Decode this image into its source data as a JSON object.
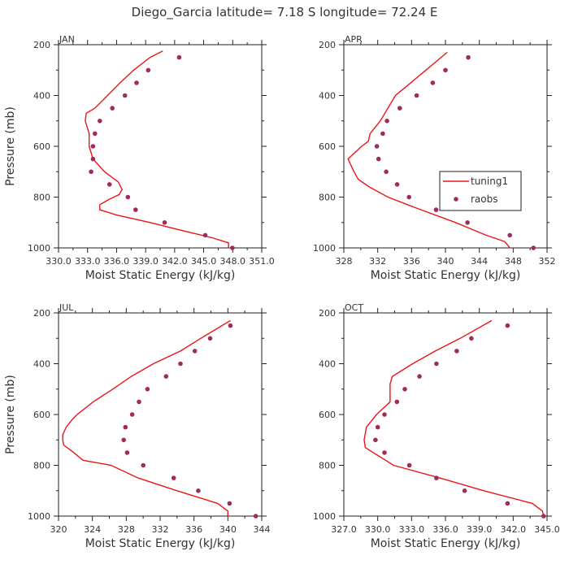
{
  "title": "Diego_Garcia  latitude= 7.18 S longitude= 72.24 E",
  "legend": {
    "model": "tuning1",
    "obs": "raobs",
    "line_color": "#e8161b",
    "dot_color": "#a02c5a"
  },
  "y_axis": {
    "label": "Pressure (mb)",
    "ticks": [
      200,
      400,
      600,
      800,
      1000
    ],
    "range": [
      200,
      1000
    ]
  },
  "x_label": "Moist Static Energy (kJ/kg)",
  "chart_data": [
    {
      "type": "line",
      "panel": "JAN",
      "xlim": [
        330.0351,
        351.0351
      ],
      "xticks": [
        330.0351,
        333.0351,
        336.0351,
        339.0351,
        342.0351,
        345.0351,
        348.0351,
        351.0351
      ],
      "xtick_labels": [
        "330.0",
        "333.0",
        "336.0",
        "339.0",
        "342.0",
        "345.0",
        "348.0",
        "351.0"
      ],
      "model_pressure": [
        225,
        250,
        300,
        350,
        400,
        450,
        470,
        500,
        550,
        600,
        650,
        700,
        740,
        770,
        790,
        810,
        830,
        850,
        870,
        900,
        930,
        960,
        980,
        1000
      ],
      "model_mse": [
        340.8,
        339.5,
        337.8,
        336.4,
        335.1,
        333.8,
        332.9,
        332.8,
        333.2,
        333.2,
        333.6,
        334.8,
        336.2,
        336.6,
        336.3,
        335.2,
        334.3,
        334.3,
        336.0,
        339.5,
        342.6,
        345.9,
        347.6,
        347.6
      ],
      "obs_pressure": [
        250,
        300,
        350,
        400,
        450,
        500,
        550,
        600,
        650,
        700,
        750,
        800,
        850,
        900,
        950,
        1000
      ],
      "obs_mse": [
        342.5,
        339.3,
        338.1,
        336.9,
        335.6,
        334.3,
        333.8,
        333.6,
        333.6,
        333.4,
        335.3,
        337.2,
        338.0,
        341.0,
        345.2,
        348.0
      ]
    },
    {
      "type": "line",
      "panel": "APR",
      "xlim": [
        328,
        352
      ],
      "xticks": [
        328,
        332,
        336,
        340,
        344,
        348,
        352
      ],
      "xtick_labels": [
        "328",
        "332",
        "336",
        "340",
        "344",
        "348",
        "352"
      ],
      "model_pressure": [
        230,
        300,
        350,
        400,
        450,
        500,
        550,
        580,
        600,
        650,
        700,
        730,
        760,
        800,
        840,
        900,
        950,
        975,
        1000
      ],
      "model_mse": [
        340.2,
        337.7,
        335.9,
        334.1,
        333.2,
        332.3,
        331.1,
        330.9,
        330.1,
        328.5,
        329.2,
        329.7,
        331.0,
        333.2,
        336.3,
        341.2,
        344.8,
        347.0,
        347.6
      ],
      "obs_pressure": [
        250,
        300,
        350,
        400,
        450,
        500,
        550,
        600,
        650,
        700,
        750,
        800,
        850,
        900,
        950,
        1000
      ],
      "obs_mse": [
        342.7,
        340.0,
        338.5,
        336.6,
        334.6,
        333.1,
        332.6,
        331.9,
        332.1,
        333.0,
        334.3,
        335.7,
        338.9,
        342.6,
        347.6,
        350.4
      ]
    },
    {
      "type": "line",
      "panel": "JUL",
      "xlim": [
        320,
        344
      ],
      "xticks": [
        320,
        324,
        328,
        332,
        336,
        340,
        344
      ],
      "xtick_labels": [
        "320",
        "324",
        "328",
        "332",
        "336",
        "340",
        "344"
      ],
      "model_pressure": [
        230,
        300,
        350,
        400,
        450,
        500,
        550,
        600,
        620,
        650,
        680,
        700,
        720,
        750,
        780,
        800,
        850,
        900,
        950,
        980,
        1000
      ],
      "model_mse": [
        340.3,
        336.8,
        334.4,
        331.2,
        328.6,
        326.4,
        324.1,
        322.2,
        321.6,
        320.9,
        320.5,
        320.5,
        320.6,
        321.8,
        322.9,
        326.2,
        329.4,
        334.0,
        338.8,
        340.0,
        340.0
      ],
      "obs_pressure": [
        250,
        300,
        350,
        400,
        450,
        500,
        550,
        600,
        650,
        700,
        750,
        800,
        850,
        900,
        950,
        1000
      ],
      "obs_mse": [
        340.3,
        337.9,
        336.1,
        334.4,
        332.7,
        330.5,
        329.5,
        328.7,
        327.9,
        327.7,
        328.1,
        330.0,
        333.6,
        336.5,
        340.2,
        343.3
      ]
    },
    {
      "type": "line",
      "panel": "OCT",
      "xlim": [
        327,
        345
      ],
      "xticks": [
        327,
        330,
        333,
        336,
        339,
        342,
        345
      ],
      "xtick_labels": [
        "327.0",
        "330.0",
        "333.0",
        "336.0",
        "339.0",
        "342.0",
        "345.0"
      ],
      "model_pressure": [
        230,
        300,
        350,
        400,
        450,
        480,
        500,
        550,
        600,
        650,
        700,
        730,
        750,
        780,
        800,
        850,
        900,
        950,
        980,
        1000
      ],
      "model_mse": [
        340.1,
        337.3,
        335.1,
        333.1,
        331.3,
        331.1,
        331.1,
        331.1,
        329.9,
        329.0,
        328.8,
        328.9,
        329.6,
        330.7,
        331.4,
        335.5,
        339.4,
        343.7,
        344.6,
        344.7
      ],
      "obs_pressure": [
        250,
        300,
        350,
        400,
        450,
        500,
        550,
        600,
        650,
        700,
        750,
        800,
        850,
        900,
        950,
        1000
      ],
      "obs_mse": [
        341.5,
        338.3,
        337.0,
        335.2,
        333.7,
        332.4,
        331.7,
        330.6,
        330.0,
        329.8,
        330.6,
        332.8,
        335.2,
        337.7,
        341.5,
        344.7
      ]
    }
  ]
}
